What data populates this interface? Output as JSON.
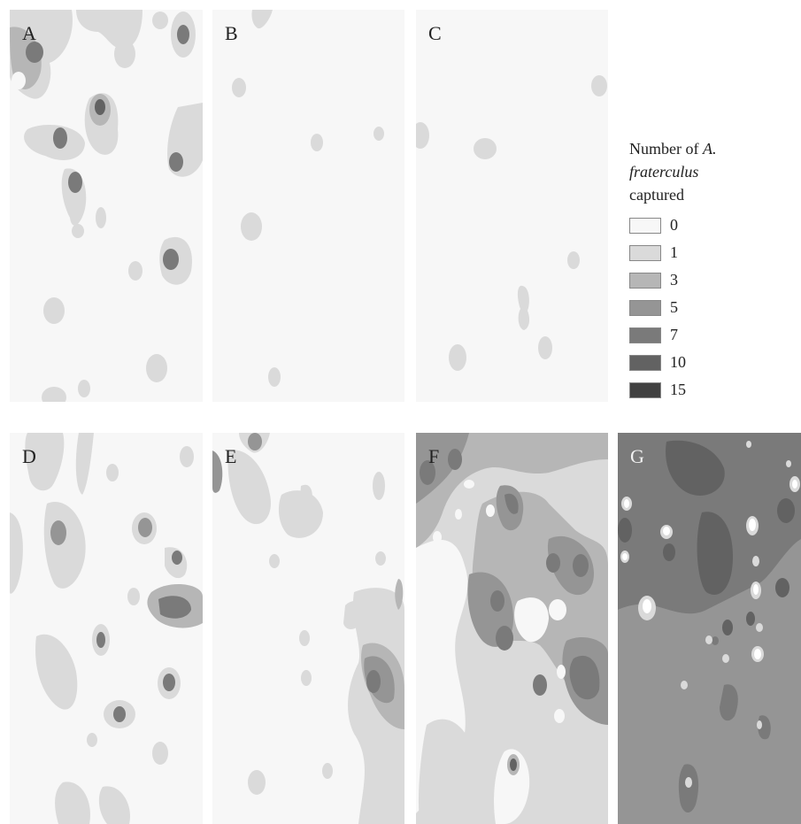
{
  "panels": [
    {
      "id": "A",
      "label": "A"
    },
    {
      "id": "B",
      "label": "B"
    },
    {
      "id": "C",
      "label": "C"
    },
    {
      "id": "D",
      "label": "D"
    },
    {
      "id": "E",
      "label": "E"
    },
    {
      "id": "F",
      "label": "F"
    },
    {
      "id": "G",
      "label": "G"
    }
  ],
  "legend": {
    "title_line1": "Number of ",
    "title_line1_italic": "A.",
    "title_line2_italic": "fraterculus",
    "title_line3": "captured",
    "items": [
      {
        "label": "0",
        "color": "#f7f7f7"
      },
      {
        "label": "1",
        "color": "#dadada"
      },
      {
        "label": "3",
        "color": "#b6b6b6"
      },
      {
        "label": "5",
        "color": "#959595"
      },
      {
        "label": "7",
        "color": "#7a7a7a"
      },
      {
        "label": "10",
        "color": "#626262"
      },
      {
        "label": "15",
        "color": "#404040"
      }
    ]
  }
}
